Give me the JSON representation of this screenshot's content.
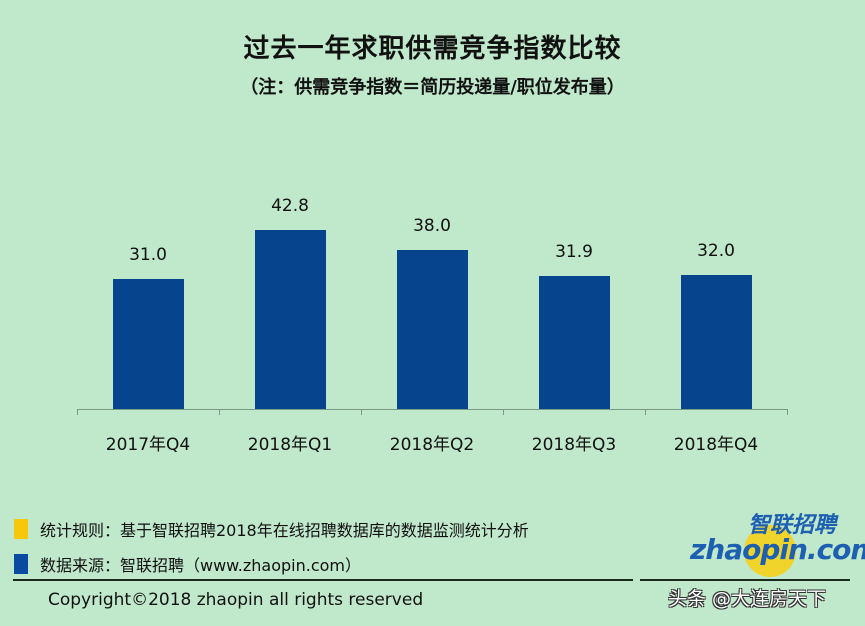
{
  "header": {
    "title": "过去一年求职供需竞争指数比较",
    "subtitle": "（注：供需竞争指数＝简历投递量/职位发布量）"
  },
  "colors": {
    "background": "#c0e8cb",
    "bar": "#06448e",
    "legend_yellow": "#f7c80a",
    "legend_blue": "#0a4aa0",
    "logo_blue": "#1d5fb0"
  },
  "chart_data": {
    "type": "bar",
    "title": "过去一年求职供需竞争指数比较",
    "subtitle": "（注：供需竞争指数＝简历投递量/职位发布量）",
    "categories": [
      "2017年Q4",
      "2018年Q1",
      "2018年Q2",
      "2018年Q3",
      "2018年Q4"
    ],
    "values": [
      31.0,
      42.8,
      38.0,
      31.9,
      32.0
    ],
    "value_labels": [
      "31.0",
      "42.8",
      "38.0",
      "31.9",
      "32.0"
    ],
    "xlabel": "",
    "ylabel": "",
    "ylim": [
      0,
      45
    ],
    "grid": false,
    "legend": "none",
    "data_labels": true
  },
  "footer": {
    "legend": [
      {
        "color": "#f7c80a",
        "text": "统计规则：基于智联招聘2018年在线招聘数据库的数据监测统计分析"
      },
      {
        "color": "#0a4aa0",
        "text": "数据来源：智联招聘（www.zhaopin.com）"
      }
    ],
    "copyright": "Copyright©2018 zhaopin all rights reserved",
    "watermark": "头条 @大连房天下"
  },
  "logo": {
    "cn": "智联招聘",
    "en": "zhaopin.com"
  }
}
